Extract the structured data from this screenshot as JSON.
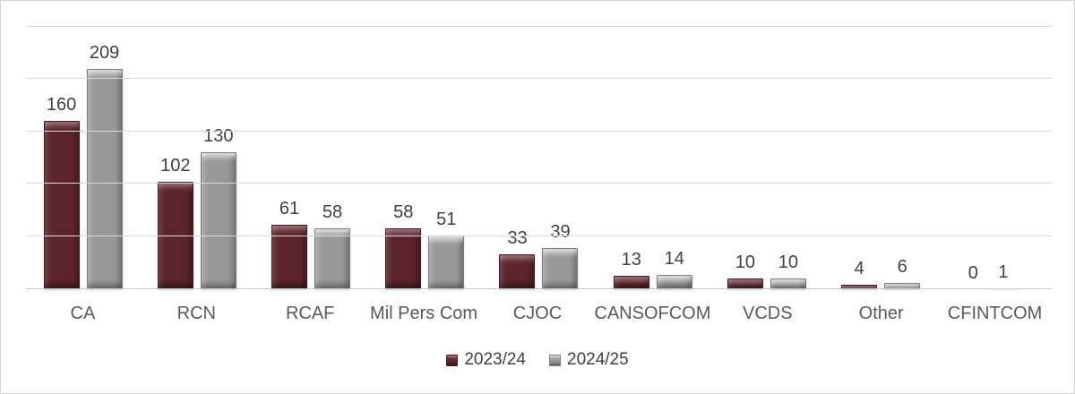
{
  "chart_data": {
    "type": "bar",
    "categories": [
      "CA",
      "RCN",
      "RCAF",
      "Mil Pers Com",
      "CJOC",
      "CANSOFCOM",
      "VCDS",
      "Other",
      "CFINTCOM"
    ],
    "series": [
      {
        "name": "2023/24",
        "color": "#5d252b",
        "values": [
          160,
          102,
          61,
          58,
          33,
          13,
          10,
          4,
          0
        ]
      },
      {
        "name": "2024/25",
        "color": "#989898",
        "values": [
          209,
          130,
          58,
          51,
          39,
          14,
          10,
          6,
          1
        ]
      }
    ],
    "title": "",
    "xlabel": "",
    "ylabel": "",
    "ylim": [
      0,
      250
    ],
    "gridline_step": 50,
    "grid": true,
    "data_labels": true,
    "legend_position": "bottom"
  },
  "colors": {
    "background": "#ffffff",
    "chart_border": "#d6d6d6",
    "gridline": "#d9d9d9",
    "axis_line": "#c9c9c9",
    "data_label_text": "#404040",
    "category_text": "#595959",
    "series1": "#5d252b",
    "series2": "#989898"
  },
  "legend": {
    "items": [
      {
        "label": "2023/24"
      },
      {
        "label": "2024/25"
      }
    ]
  }
}
